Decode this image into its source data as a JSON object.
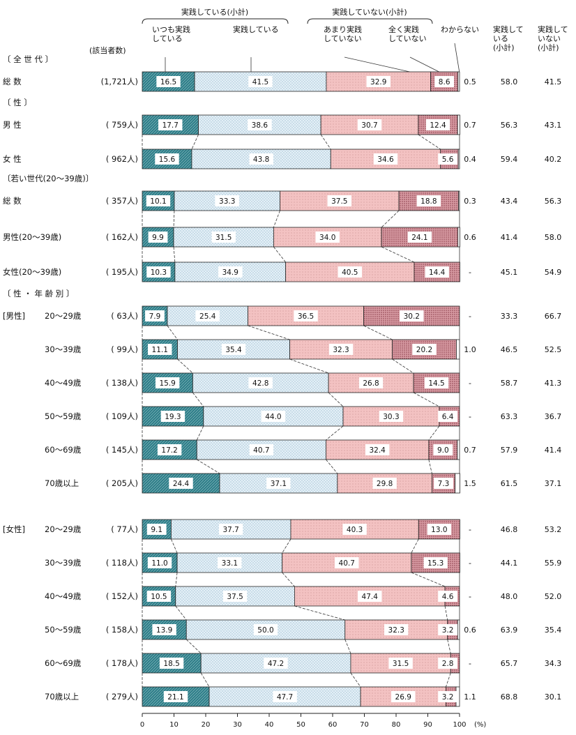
{
  "chart_data": {
    "type": "bar",
    "stacked": true,
    "orientation": "horizontal",
    "unit": "(%)",
    "xlim": [
      0,
      100
    ],
    "x_ticks": [
      0,
      10,
      20,
      30,
      40,
      50,
      60,
      70,
      80,
      90,
      100
    ],
    "headers": {
      "group_practicing": "実践している(小計)",
      "group_not_practicing": "実践していない(小計)",
      "always": "いつも実践している",
      "practicing": "実践している",
      "rarely": "あまり実践していない",
      "never": "全く実践していない",
      "dont_know": "わからない",
      "subtotal_yes": "実践している(小計)",
      "subtotal_no": "実践していない(小計)",
      "count_header": "(該当者数)"
    },
    "sections": [
      {
        "label": "〔 全 世 代 〕",
        "row_start": 0
      },
      {
        "label": "〔 性 〕",
        "row_start": 1
      },
      {
        "label": "〔若い世代(20～39歳)〕",
        "row_start": 3
      },
      {
        "label": "〔 性 ・ 年 齢 別 〕",
        "row_start": 6
      }
    ],
    "group_labels": [
      {
        "label": "[男性]",
        "row": 6
      },
      {
        "label": "[女性]",
        "row": 12
      }
    ],
    "series": [
      {
        "name": "いつも実践している",
        "color": "#2e7f8a"
      },
      {
        "name": "実践している",
        "color": "#ddecf5"
      },
      {
        "name": "あまり実践していない",
        "color": "#f0b9b9"
      },
      {
        "name": "全く実践していない",
        "color": "#c47c86"
      },
      {
        "name": "わからない",
        "color": "#ffffff"
      }
    ],
    "rows": [
      {
        "label": "総 数",
        "n": "(1,721人)",
        "values": [
          16.5,
          41.5,
          32.9,
          8.6,
          0.5
        ],
        "labels": [
          "16.5",
          "41.5",
          "32.9",
          "8.6",
          "0.5"
        ],
        "subtotal_yes": "58.0",
        "subtotal_no": "41.5"
      },
      {
        "label": "男 性",
        "n": "( 759人)",
        "values": [
          17.7,
          38.6,
          30.7,
          12.4,
          0.7
        ],
        "labels": [
          "17.7",
          "38.6",
          "30.7",
          "12.4",
          "0.7"
        ],
        "subtotal_yes": "56.3",
        "subtotal_no": "43.1"
      },
      {
        "label": "女 性",
        "n": "( 962人)",
        "values": [
          15.6,
          43.8,
          34.6,
          5.6,
          0.4
        ],
        "labels": [
          "15.6",
          "43.8",
          "34.6",
          "5.6",
          "0.4"
        ],
        "subtotal_yes": "59.4",
        "subtotal_no": "40.2"
      },
      {
        "label": "総 数",
        "n": "( 357人)",
        "values": [
          10.1,
          33.3,
          37.5,
          18.8,
          0.3
        ],
        "labels": [
          "10.1",
          "33.3",
          "37.5",
          "18.8",
          "0.3"
        ],
        "subtotal_yes": "43.4",
        "subtotal_no": "56.3"
      },
      {
        "label": "男性(20～39歳)",
        "n": "( 162人)",
        "values": [
          9.9,
          31.5,
          34.0,
          24.1,
          0.6
        ],
        "labels": [
          "9.9",
          "31.5",
          "34.0",
          "24.1",
          "0.6"
        ],
        "subtotal_yes": "41.4",
        "subtotal_no": "58.0"
      },
      {
        "label": "女性(20～39歳)",
        "n": "( 195人)",
        "values": [
          10.3,
          34.9,
          40.5,
          14.4,
          0
        ],
        "labels": [
          "10.3",
          "34.9",
          "40.5",
          "14.4",
          "-"
        ],
        "subtotal_yes": "45.1",
        "subtotal_no": "54.9"
      },
      {
        "label": "20～29歳",
        "n": "( 63人)",
        "values": [
          7.9,
          25.4,
          36.5,
          30.2,
          0
        ],
        "labels": [
          "7.9",
          "25.4",
          "36.5",
          "30.2",
          "-"
        ],
        "subtotal_yes": "33.3",
        "subtotal_no": "66.7"
      },
      {
        "label": "30～39歳",
        "n": "( 99人)",
        "values": [
          11.1,
          35.4,
          32.3,
          20.2,
          1.0
        ],
        "labels": [
          "11.1",
          "35.4",
          "32.3",
          "20.2",
          "1.0"
        ],
        "subtotal_yes": "46.5",
        "subtotal_no": "52.5"
      },
      {
        "label": "40～49歳",
        "n": "( 138人)",
        "values": [
          15.9,
          42.8,
          26.8,
          14.5,
          0
        ],
        "labels": [
          "15.9",
          "42.8",
          "26.8",
          "14.5",
          "-"
        ],
        "subtotal_yes": "58.7",
        "subtotal_no": "41.3"
      },
      {
        "label": "50～59歳",
        "n": "( 109人)",
        "values": [
          19.3,
          44.0,
          30.3,
          6.4,
          0
        ],
        "labels": [
          "19.3",
          "44.0",
          "30.3",
          "6.4",
          "-"
        ],
        "subtotal_yes": "63.3",
        "subtotal_no": "36.7"
      },
      {
        "label": "60～69歳",
        "n": "( 145人)",
        "values": [
          17.2,
          40.7,
          32.4,
          9.0,
          0.7
        ],
        "labels": [
          "17.2",
          "40.7",
          "32.4",
          "9.0",
          "0.7"
        ],
        "subtotal_yes": "57.9",
        "subtotal_no": "41.4"
      },
      {
        "label": "70歳以上",
        "n": "( 205人)",
        "values": [
          24.4,
          37.1,
          29.8,
          7.3,
          1.5
        ],
        "labels": [
          "24.4",
          "37.1",
          "29.8",
          "7.3",
          "1.5"
        ],
        "subtotal_yes": "61.5",
        "subtotal_no": "37.1"
      },
      {
        "label": "20～29歳",
        "n": "( 77人)",
        "values": [
          9.1,
          37.7,
          40.3,
          13.0,
          0
        ],
        "labels": [
          "9.1",
          "37.7",
          "40.3",
          "13.0",
          "-"
        ],
        "subtotal_yes": "46.8",
        "subtotal_no": "53.2"
      },
      {
        "label": "30～39歳",
        "n": "( 118人)",
        "values": [
          11.0,
          33.1,
          40.7,
          15.3,
          0
        ],
        "labels": [
          "11.0",
          "33.1",
          "40.7",
          "15.3",
          "-"
        ],
        "subtotal_yes": "44.1",
        "subtotal_no": "55.9"
      },
      {
        "label": "40～49歳",
        "n": "( 152人)",
        "values": [
          10.5,
          37.5,
          47.4,
          4.6,
          0
        ],
        "labels": [
          "10.5",
          "37.5",
          "47.4",
          "4.6",
          "-"
        ],
        "subtotal_yes": "48.0",
        "subtotal_no": "52.0"
      },
      {
        "label": "50～59歳",
        "n": "( 158人)",
        "values": [
          13.9,
          50.0,
          32.3,
          3.2,
          0.6
        ],
        "labels": [
          "13.9",
          "50.0",
          "32.3",
          "3.2",
          "0.6"
        ],
        "subtotal_yes": "63.9",
        "subtotal_no": "35.4"
      },
      {
        "label": "60～69歳",
        "n": "( 178人)",
        "values": [
          18.5,
          47.2,
          31.5,
          2.8,
          0
        ],
        "labels": [
          "18.5",
          "47.2",
          "31.5",
          "2.8",
          "-"
        ],
        "subtotal_yes": "65.7",
        "subtotal_no": "34.3"
      },
      {
        "label": "70歳以上",
        "n": "( 279人)",
        "values": [
          21.1,
          47.7,
          26.9,
          3.2,
          1.1
        ],
        "labels": [
          "21.1",
          "47.7",
          "26.9",
          "3.2",
          "1.1"
        ],
        "subtotal_yes": "68.8",
        "subtotal_no": "30.1"
      }
    ]
  }
}
